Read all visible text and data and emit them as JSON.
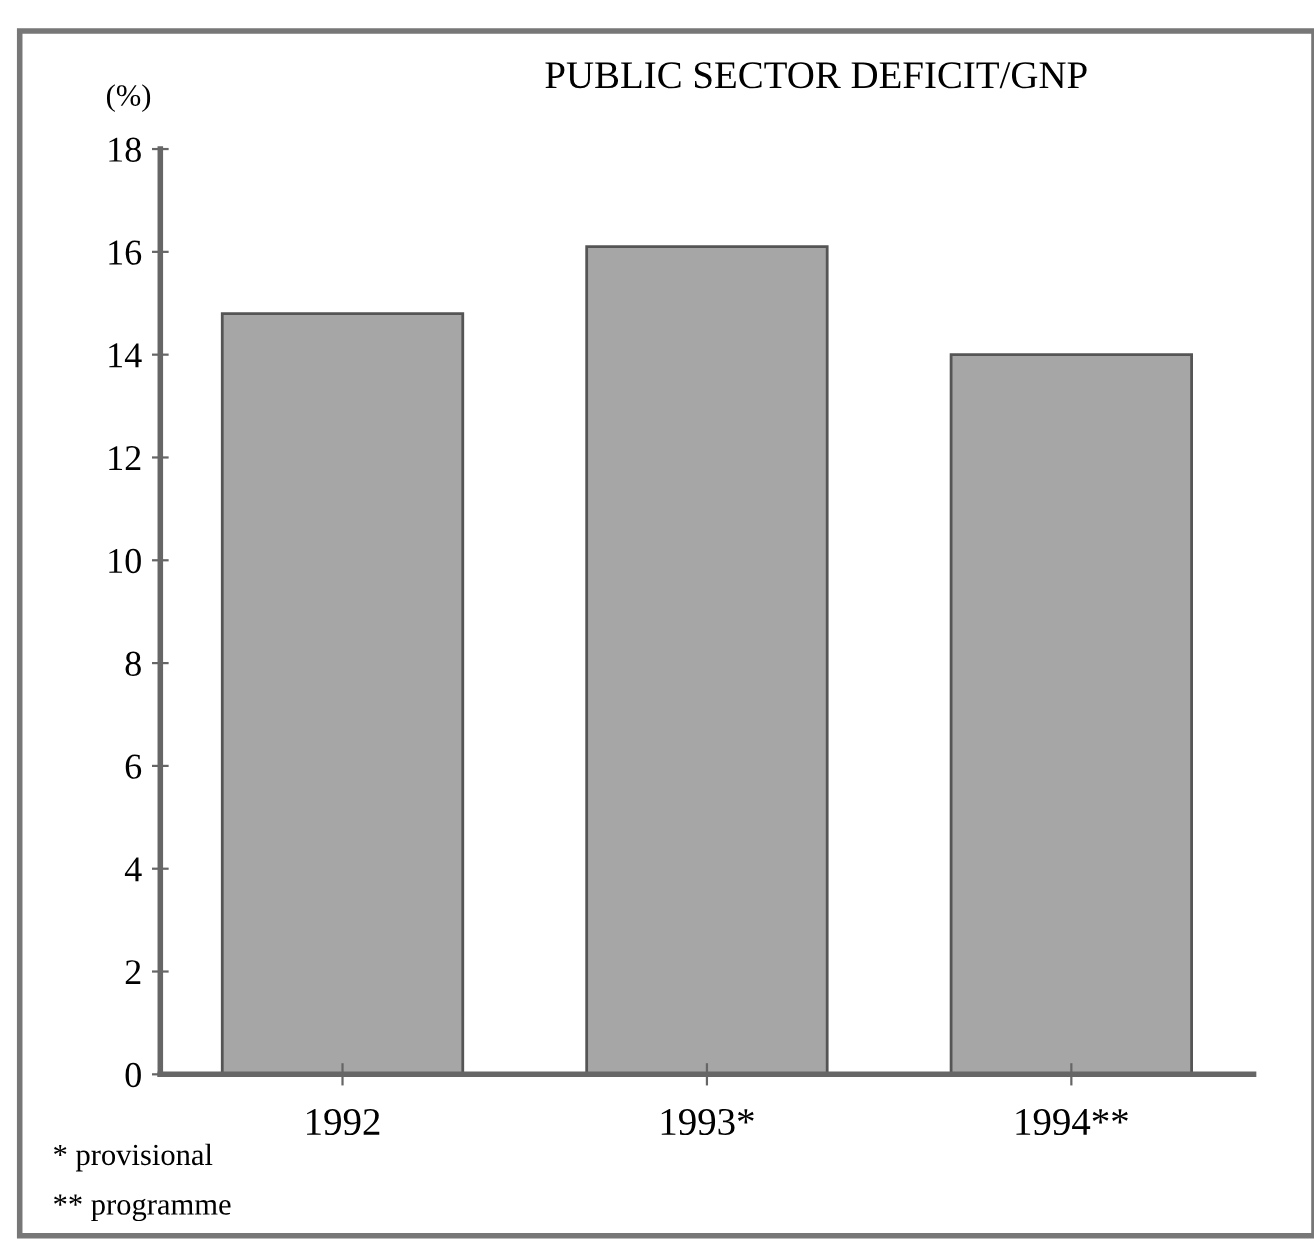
{
  "chart_data": {
    "type": "bar",
    "title": "PUBLIC SECTOR DEFICIT/GNP",
    "ylabel": "(%)",
    "categories": [
      "1992",
      "1993*",
      "1994**"
    ],
    "values": [
      14.8,
      16.1,
      14.0
    ],
    "color": "#a6a6a6",
    "ylim": [
      0,
      18
    ],
    "yticks": [
      0,
      2,
      4,
      6,
      8,
      10,
      12,
      14,
      16,
      18
    ],
    "grid": false,
    "legend": false,
    "annotations": [
      "* provisional",
      "** programme"
    ]
  }
}
